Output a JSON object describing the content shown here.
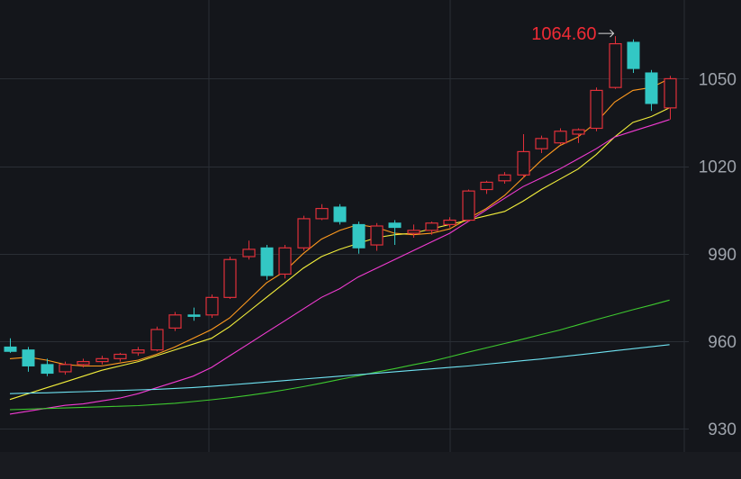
{
  "chart_data": {
    "type": "candlestick",
    "y_ticks": [
      930,
      960,
      990,
      1020,
      1050
    ],
    "ylim": [
      922,
      1077
    ],
    "grid": true,
    "x": [
      1,
      2,
      3,
      4,
      5,
      6,
      7,
      8,
      9,
      10,
      11,
      12,
      13,
      14,
      15,
      16,
      17,
      18,
      19,
      20,
      21,
      22,
      23,
      24,
      25,
      26,
      27,
      28,
      29,
      30,
      31,
      32,
      33,
      34,
      35,
      36,
      37
    ],
    "candles": [
      {
        "o": 958.0,
        "h": 961.0,
        "l": 956.0,
        "c": 956.5
      },
      {
        "o": 957.0,
        "h": 958.0,
        "l": 949.5,
        "c": 951.5
      },
      {
        "o": 952.0,
        "h": 954.0,
        "l": 948.0,
        "c": 949.0
      },
      {
        "o": 949.5,
        "h": 953.0,
        "l": 948.5,
        "c": 952.0
      },
      {
        "o": 952.0,
        "h": 954.0,
        "l": 951.0,
        "c": 953.0
      },
      {
        "o": 953.0,
        "h": 955.0,
        "l": 952.0,
        "c": 954.0
      },
      {
        "o": 954.0,
        "h": 956.0,
        "l": 953.0,
        "c": 955.5
      },
      {
        "o": 956.0,
        "h": 958.0,
        "l": 955.0,
        "c": 957.0
      },
      {
        "o": 957.0,
        "h": 965.0,
        "l": 956.5,
        "c": 964.0
      },
      {
        "o": 964.5,
        "h": 970.0,
        "l": 963.5,
        "c": 969.0
      },
      {
        "o": 969.0,
        "h": 971.5,
        "l": 967.0,
        "c": 968.5
      },
      {
        "o": 969.0,
        "h": 976.0,
        "l": 968.0,
        "c": 975.0
      },
      {
        "o": 975.0,
        "h": 989.0,
        "l": 974.5,
        "c": 988.0
      },
      {
        "o": 989.0,
        "h": 994.5,
        "l": 988.0,
        "c": 991.5
      },
      {
        "o": 992.0,
        "h": 993.0,
        "l": 981.0,
        "c": 982.5
      },
      {
        "o": 983.0,
        "h": 993.0,
        "l": 981.5,
        "c": 992.0
      },
      {
        "o": 992.0,
        "h": 1003.0,
        "l": 991.0,
        "c": 1002.0
      },
      {
        "o": 1002.0,
        "h": 1007.0,
        "l": 1001.5,
        "c": 1005.5
      },
      {
        "o": 1006.0,
        "h": 1007.0,
        "l": 1000.0,
        "c": 1001.0
      },
      {
        "o": 1000.0,
        "h": 1001.0,
        "l": 990.0,
        "c": 992.0
      },
      {
        "o": 993.0,
        "h": 1000.5,
        "l": 991.0,
        "c": 999.5
      },
      {
        "o": 1000.5,
        "h": 1001.5,
        "l": 993.0,
        "c": 999.0
      },
      {
        "o": 997.0,
        "h": 1000.0,
        "l": 995.5,
        "c": 998.0
      },
      {
        "o": 998.0,
        "h": 1001.0,
        "l": 996.5,
        "c": 1000.5
      },
      {
        "o": 1000.0,
        "h": 1002.5,
        "l": 999.0,
        "c": 1001.5
      },
      {
        "o": 1001.5,
        "h": 1012.0,
        "l": 1001.0,
        "c": 1011.5
      },
      {
        "o": 1012.0,
        "h": 1015.0,
        "l": 1010.5,
        "c": 1014.5
      },
      {
        "o": 1015.0,
        "h": 1018.0,
        "l": 1014.0,
        "c": 1017.0
      },
      {
        "o": 1017.0,
        "h": 1031.0,
        "l": 1016.0,
        "c": 1025.0
      },
      {
        "o": 1026.0,
        "h": 1030.5,
        "l": 1024.5,
        "c": 1029.5
      },
      {
        "o": 1028.0,
        "h": 1033.0,
        "l": 1027.5,
        "c": 1032.0
      },
      {
        "o": 1031.0,
        "h": 1033.0,
        "l": 1028.0,
        "c": 1032.5
      },
      {
        "o": 1033.0,
        "h": 1047.0,
        "l": 1032.0,
        "c": 1046.0
      },
      {
        "o": 1047.0,
        "h": 1064.6,
        "l": 1046.5,
        "c": 1062.0
      },
      {
        "o": 1062.5,
        "h": 1063.5,
        "l": 1052.0,
        "c": 1053.5
      },
      {
        "o": 1052.0,
        "h": 1053.0,
        "l": 1039.0,
        "c": 1041.5
      },
      {
        "o": 1040.0,
        "h": 1051.0,
        "l": 1036.0,
        "c": 1050.0
      }
    ],
    "moving_averages": [
      {
        "color": "#ff9a1e",
        "values": [
          954,
          954.5,
          953.5,
          952,
          951.5,
          951.5,
          952.5,
          953.5,
          955.5,
          958,
          961,
          964,
          968,
          974,
          980,
          984,
          990,
          995,
          998,
          1000,
          999,
          997,
          996.5,
          997,
          998.5,
          1002,
          1005.5,
          1010,
          1016,
          1022,
          1027,
          1030,
          1035,
          1042,
          1046,
          1047,
          1050
        ]
      },
      {
        "color": "#f3ef3b",
        "values": [
          940,
          942,
          944,
          946,
          948,
          950,
          951.5,
          953,
          955,
          957,
          959,
          961,
          965,
          970,
          975,
          980,
          985,
          989,
          991.5,
          993.5,
          995.5,
          996.5,
          997,
          998.5,
          1000,
          1001.5,
          1003,
          1004.5,
          1008,
          1012,
          1015.5,
          1019,
          1024,
          1030,
          1035,
          1037,
          1040
        ]
      },
      {
        "color": "#f23bd2",
        "values": [
          935,
          936,
          937,
          938,
          938.5,
          939.5,
          940.5,
          942,
          944,
          946,
          948,
          951,
          955,
          959,
          963,
          967,
          971,
          975,
          978,
          982,
          985,
          988,
          991,
          994,
          997,
          1001,
          1005,
          1009,
          1013,
          1016,
          1019,
          1022.5,
          1026,
          1030,
          1032,
          1034,
          1036
        ]
      },
      {
        "color": "#3ec92f",
        "values": [
          936.5,
          936.7,
          936.9,
          937.1,
          937.3,
          937.5,
          937.7,
          937.9,
          938.3,
          938.7,
          939.3,
          939.9,
          940.6,
          941.4,
          942.3,
          943.3,
          944.4,
          945.6,
          946.9,
          948.1,
          949.4,
          950.6,
          951.9,
          953.1,
          954.6,
          956.2,
          957.7,
          959.2,
          960.7,
          962.3,
          963.8,
          965.6,
          967.4,
          969.1,
          970.8,
          972.4,
          974.1
        ]
      },
      {
        "color": "#6fe3f2",
        "values": [
          942,
          942.2,
          942.3,
          942.5,
          942.7,
          942.9,
          943.1,
          943.3,
          943.5,
          943.8,
          944.1,
          944.5,
          945.0,
          945.5,
          946.0,
          946.5,
          947.0,
          947.5,
          948.0,
          948.5,
          949.0,
          949.5,
          950.0,
          950.5,
          951.0,
          951.5,
          952.1,
          952.7,
          953.3,
          953.9,
          954.6,
          955.3,
          956.0,
          956.7,
          957.4,
          958.1,
          958.8
        ]
      }
    ],
    "annotations": [
      {
        "text": "1064.60",
        "color": "#f02b35",
        "x": 34,
        "y": 1064.6
      }
    ],
    "colors": {
      "up": "#e0303a",
      "down": "#33c7c4",
      "grid": "#2a2e35",
      "background": "#14161b"
    }
  }
}
